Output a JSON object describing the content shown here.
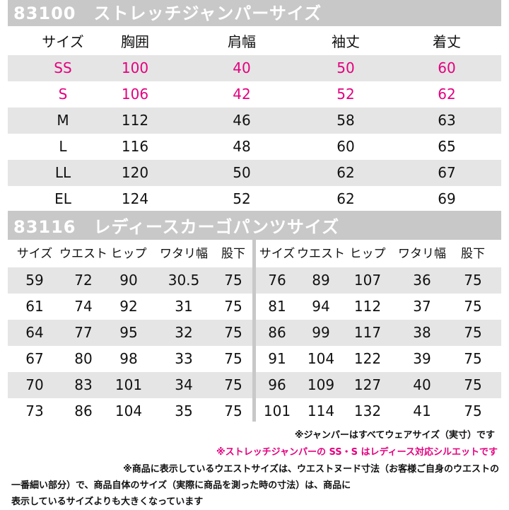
{
  "jumper": {
    "title": "83100　ストレッチジャンパーサイズ",
    "headers": [
      "サイズ",
      "胸囲",
      "肩幅",
      "袖丈",
      "着丈"
    ],
    "rows": [
      {
        "cells": [
          "SS",
          "100",
          "40",
          "50",
          "60"
        ],
        "highlight": true
      },
      {
        "cells": [
          "S",
          "106",
          "42",
          "52",
          "62"
        ],
        "highlight": true
      },
      {
        "cells": [
          "M",
          "112",
          "46",
          "58",
          "63"
        ],
        "highlight": false
      },
      {
        "cells": [
          "L",
          "116",
          "48",
          "60",
          "65"
        ],
        "highlight": false
      },
      {
        "cells": [
          "LL",
          "120",
          "50",
          "62",
          "67"
        ],
        "highlight": false
      },
      {
        "cells": [
          "EL",
          "124",
          "52",
          "62",
          "69"
        ],
        "highlight": false
      }
    ]
  },
  "pants": {
    "title": "83116　レディースカーゴパンツサイズ",
    "headers": [
      "サイズ",
      "ウエスト",
      "ヒップ",
      "ワタリ幅",
      "股下"
    ],
    "left_rows": [
      [
        "59",
        "72",
        "90",
        "30.5",
        "75"
      ],
      [
        "61",
        "74",
        "92",
        "31",
        "75"
      ],
      [
        "64",
        "77",
        "95",
        "32",
        "75"
      ],
      [
        "67",
        "80",
        "98",
        "33",
        "75"
      ],
      [
        "70",
        "83",
        "101",
        "34",
        "75"
      ],
      [
        "73",
        "86",
        "104",
        "35",
        "75"
      ]
    ],
    "right_rows": [
      [
        "76",
        "89",
        "107",
        "36",
        "75"
      ],
      [
        "81",
        "94",
        "112",
        "37",
        "75"
      ],
      [
        "86",
        "99",
        "117",
        "38",
        "75"
      ],
      [
        "91",
        "104",
        "122",
        "39",
        "75"
      ],
      [
        "96",
        "109",
        "127",
        "40",
        "75"
      ],
      [
        "101",
        "114",
        "132",
        "41",
        "75"
      ]
    ]
  },
  "notes": {
    "line1": "※ジャンパーはすべてウェアサイズ（実寸）です",
    "line2": "※ストレッチジャンパーの SS・S はレディース対応シルエットです",
    "line3": "※商品に表示しているウエストサイズは、ウエストヌード寸法（お客様ご自身のウエストの",
    "line4": "一番細い部分）で、商品自体のサイズ（実際に商品を測った時の寸法）は、商品に",
    "line5": "表示しているサイズよりも大きくなっています"
  },
  "colors": {
    "frame": "#c8c8c8",
    "shade": "#e5e5e5",
    "pink": "#e4007f"
  }
}
